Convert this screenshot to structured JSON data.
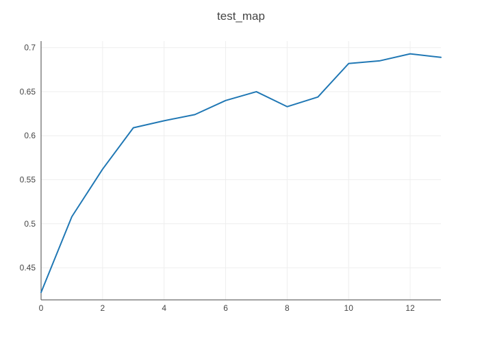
{
  "chart_data": {
    "type": "line",
    "title": "test_map",
    "xlabel": "",
    "ylabel": "",
    "x_ticks": [
      0,
      2,
      4,
      6,
      8,
      10,
      12
    ],
    "y_ticks": [
      0.45,
      0.5,
      0.55,
      0.6,
      0.65,
      0.7
    ],
    "y_tick_labels": [
      "0.45",
      "0.5",
      "0.55",
      "0.6",
      "0.65",
      "0.7"
    ],
    "xlim": [
      0,
      13
    ],
    "ylim": [
      0.4135,
      0.7075
    ],
    "grid": true,
    "series": [
      {
        "color": "#1f77b4",
        "x": [
          0,
          1,
          2,
          3,
          4,
          5,
          6,
          7,
          8,
          9,
          10,
          11,
          12,
          13
        ],
        "y": [
          0.422,
          0.508,
          0.562,
          0.609,
          0.617,
          0.624,
          0.64,
          0.65,
          0.633,
          0.644,
          0.682,
          0.685,
          0.693,
          0.689
        ]
      }
    ]
  },
  "colors": {
    "grid": "#eeeeee",
    "axis": "#444444",
    "text": "#444444",
    "line": "#1f77b4"
  }
}
